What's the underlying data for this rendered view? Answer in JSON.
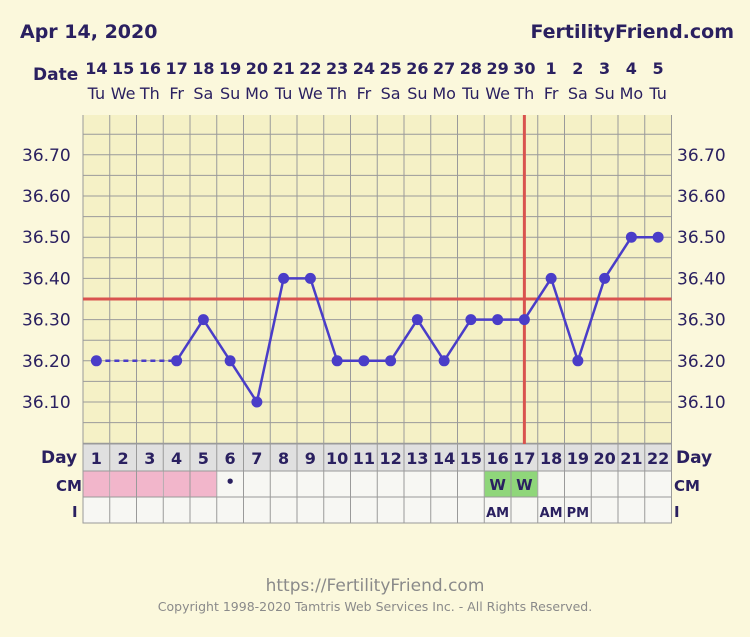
{
  "header": {
    "date_label": "Apr 14, 2020",
    "site": "FertilityFriend.com",
    "date_row_label": "Date",
    "day_row_label": "Day",
    "cm_row_label": "CM",
    "i_row_label": "I"
  },
  "footer": {
    "url": "https://FertilityFriend.com",
    "copyright": "Copyright 1998-2020 Tamtris Web Services Inc. - All Rights Reserved."
  },
  "colors": {
    "background": "#fbf8dc",
    "temp_line": "#4a3dc8",
    "coverline": "#d9534f",
    "grid": "#9a9a9a",
    "menstruation": "#f2b6cb",
    "cm_w": "#8fd67a",
    "text": "#2a2060"
  },
  "chart_data": {
    "type": "line",
    "dates": [
      "14",
      "15",
      "16",
      "17",
      "18",
      "19",
      "20",
      "21",
      "22",
      "23",
      "24",
      "25",
      "26",
      "27",
      "28",
      "29",
      "30",
      "1",
      "2",
      "3",
      "4",
      "5"
    ],
    "weekdays": [
      "Tu",
      "We",
      "Th",
      "Fr",
      "Sa",
      "Su",
      "Mo",
      "Tu",
      "We",
      "Th",
      "Fr",
      "Sa",
      "Su",
      "Mo",
      "Tu",
      "We",
      "Th",
      "Fr",
      "Sa",
      "Su",
      "Mo",
      "Tu"
    ],
    "cycle_days": [
      "1",
      "2",
      "3",
      "4",
      "5",
      "6",
      "7",
      "8",
      "9",
      "10",
      "11",
      "12",
      "13",
      "14",
      "15",
      "16",
      "17",
      "18",
      "19",
      "20",
      "21",
      "22"
    ],
    "y_tick_labels": [
      "36.70",
      "36.60",
      "36.50",
      "36.40",
      "36.30",
      "36.20",
      "36.10"
    ],
    "ylim": [
      36.0,
      36.8
    ],
    "temperatures": [
      36.2,
      null,
      null,
      36.2,
      36.3,
      36.2,
      36.1,
      36.4,
      36.4,
      36.2,
      36.2,
      36.2,
      36.3,
      36.2,
      36.3,
      36.3,
      36.3,
      36.4,
      36.2,
      36.4,
      36.5,
      36.5
    ],
    "coverline": 36.35,
    "ovulation_day": 17,
    "cervical_mucus": [
      "M",
      "M",
      "M",
      "M",
      "M",
      "•",
      "",
      "",
      "",
      "",
      "",
      "",
      "",
      "",
      "",
      "W",
      "W",
      "",
      "",
      "",
      "",
      ""
    ],
    "intercourse": [
      "",
      "",
      "",
      "",
      "",
      "",
      "",
      "",
      "",
      "",
      "",
      "",
      "",
      "",
      "",
      "AM",
      "",
      "AM",
      "PM",
      "",
      "",
      ""
    ],
    "grid": true
  }
}
